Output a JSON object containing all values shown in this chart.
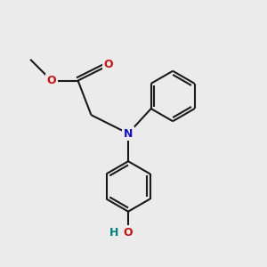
{
  "bg_color": "#ebebeb",
  "bond_color": "#1a1a1a",
  "N_color": "#1010cc",
  "O_color": "#cc1010",
  "H_color": "#008080",
  "line_width": 1.5,
  "font_size_atoms": 9,
  "fig_size": [
    3.0,
    3.0
  ],
  "dpi": 100,
  "xlim": [
    0,
    10
  ],
  "ylim": [
    0,
    10
  ]
}
